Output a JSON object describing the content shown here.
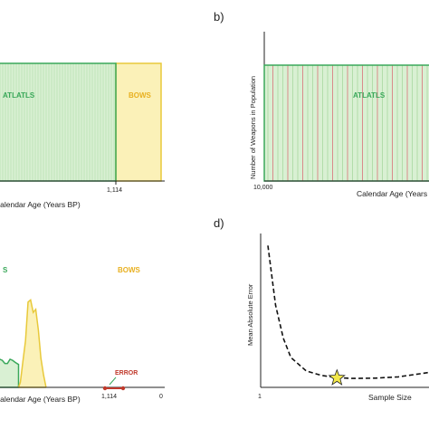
{
  "chart_data": [
    {
      "panel": "a",
      "type": "area",
      "xlabel": "Calendar Age (Years BP)",
      "x_tick_labels": [
        "1,114"
      ],
      "series": [
        {
          "name": "ATLATLS",
          "color": "#3aa85a",
          "fill": "#d9f0d3",
          "x_range": [
            1300,
            1114
          ]
        },
        {
          "name": "BOWS",
          "color": "#e8c93a",
          "fill": "#fbf1b8",
          "x_range": [
            1114,
            900
          ]
        }
      ],
      "grid": true
    },
    {
      "panel": "b",
      "label": "b)",
      "type": "area",
      "ylabel": "Number of Weapons in Population",
      "xlabel": "Calendar Age (Years",
      "x_tick_labels": [
        "10,000"
      ],
      "series": [
        {
          "name": "ATLATLS",
          "color": "#3aa85a",
          "fill": "#d9f0d3"
        }
      ],
      "grid": true
    },
    {
      "panel": "c",
      "type": "area",
      "xlabel": "Calendar Age (Years BP)",
      "x_tick_labels": [
        "1,114",
        "0"
      ],
      "xlim": [
        1300,
        0
      ],
      "series": [
        {
          "name": "ATLATLS",
          "label_shown": "S",
          "color": "#3aa85a",
          "fill": "#d9f0d3",
          "x": [
            1300,
            1280,
            1260,
            1240,
            1220,
            1200,
            1180,
            1160,
            1140,
            1114
          ],
          "y": [
            0.22,
            0.22,
            0.27,
            0.26,
            0.23,
            0.23,
            0.27,
            0.26,
            0.24,
            0.22
          ]
        },
        {
          "name": "BOWS",
          "color": "#e8c93a",
          "fill": "#fbf1b8",
          "x": [
            1114,
            1100,
            1080,
            1060,
            1040,
            1020,
            1000,
            980,
            960,
            940,
            920,
            900
          ],
          "y": [
            0.0,
            0.05,
            0.25,
            0.45,
            0.82,
            0.84,
            0.72,
            0.75,
            0.55,
            0.28,
            0.12,
            0.0
          ]
        }
      ],
      "annotations": [
        {
          "text": "ERROR",
          "color": "#c0392b",
          "x_range": [
            1114,
            1080
          ]
        }
      ]
    },
    {
      "panel": "d",
      "label": "d)",
      "type": "line",
      "xlabel": "Sample Size",
      "ylabel": "Mean Absolute Error",
      "x_tick_labels": [
        "1"
      ],
      "series": [
        {
          "style": "dashed",
          "color": "#111111",
          "x": [
            1,
            2,
            3,
            4,
            6,
            8,
            10,
            12,
            15,
            18,
            20,
            22
          ],
          "y": [
            0.95,
            0.55,
            0.33,
            0.2,
            0.11,
            0.08,
            0.065,
            0.06,
            0.062,
            0.07,
            0.085,
            0.1
          ]
        }
      ],
      "marker": {
        "shape": "star",
        "color": "#f3e84a",
        "x": 10,
        "y": 0.06
      }
    }
  ]
}
